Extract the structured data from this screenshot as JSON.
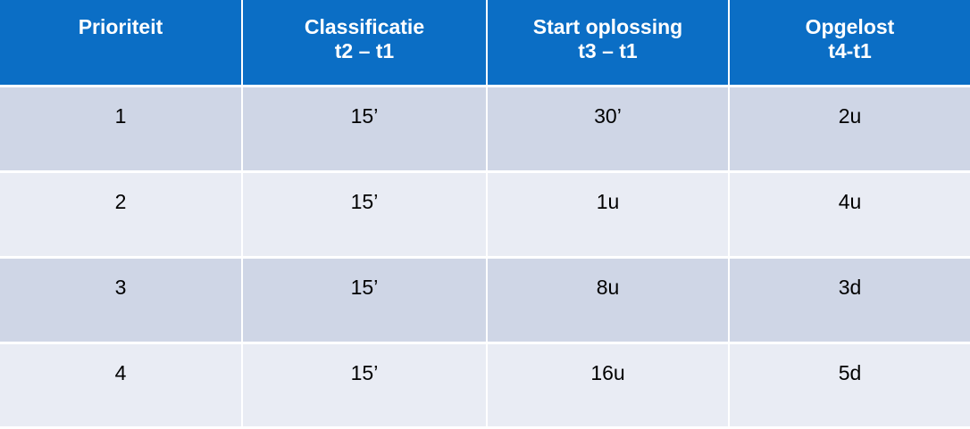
{
  "table": {
    "headers": [
      [
        "Prioriteit"
      ],
      [
        "Classificatie",
        "t2 – t1"
      ],
      [
        "Start oplossing",
        "t3 – t1"
      ],
      [
        "Opgelost",
        "t4-t1"
      ]
    ],
    "rows": [
      [
        "1",
        "15’",
        "30’",
        "2u"
      ],
      [
        "2",
        "15’",
        "1u",
        "4u"
      ],
      [
        "3",
        "15’",
        "8u",
        "3d"
      ],
      [
        "4",
        "15’",
        "16u",
        "5d"
      ]
    ]
  },
  "colors": {
    "header_bg": "#0b6ec5",
    "row_dark": "#cfd6e6",
    "row_light": "#e9ecf4"
  }
}
